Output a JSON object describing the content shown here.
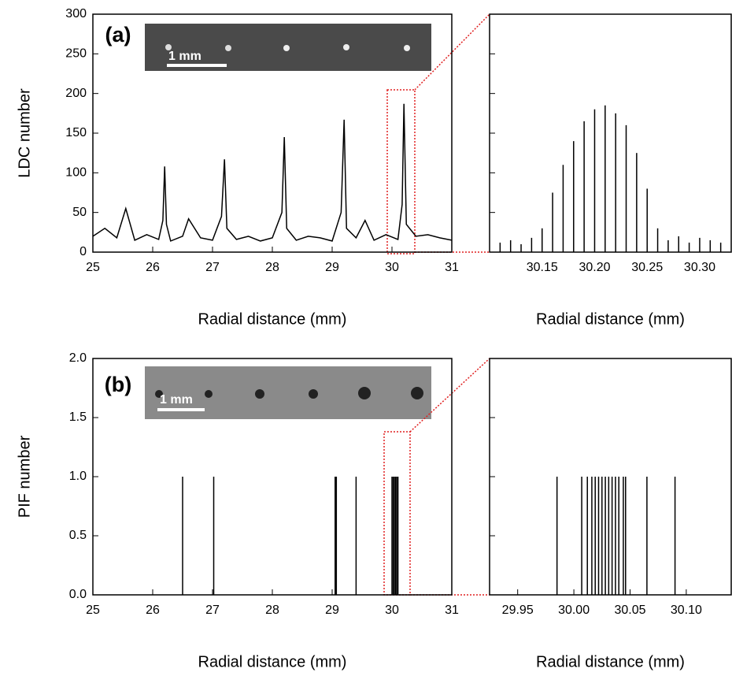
{
  "chart_data": [
    {
      "type": "line",
      "panel_label": "(a)",
      "inset_label": "1 mm",
      "ylabel": "LDC number",
      "xlabel": "Radial distance (mm)",
      "color": "#000000",
      "ytick_labels": true,
      "xlim": [
        25,
        31
      ],
      "ylim": [
        0,
        300
      ],
      "xticks": [
        25,
        26,
        27,
        28,
        29,
        30,
        31
      ],
      "yticks": [
        0,
        50,
        100,
        150,
        200,
        250,
        300
      ],
      "x": [
        25,
        25.2,
        25.4,
        25.55,
        25.7,
        25.9,
        26.1,
        26.17,
        26.2,
        26.23,
        26.3,
        26.5,
        26.6,
        26.8,
        27.0,
        27.15,
        27.2,
        27.24,
        27.4,
        27.6,
        27.8,
        28.0,
        28.16,
        28.2,
        28.24,
        28.4,
        28.6,
        28.8,
        29.0,
        29.15,
        29.2,
        29.24,
        29.4,
        29.55,
        29.7,
        29.9,
        30.1,
        30.17,
        30.2,
        30.24,
        30.4,
        30.6,
        30.8,
        31
      ],
      "values": [
        20,
        30,
        18,
        55,
        15,
        22,
        16,
        40,
        108,
        35,
        14,
        20,
        42,
        18,
        15,
        45,
        117,
        30,
        16,
        20,
        14,
        18,
        50,
        145,
        30,
        15,
        20,
        18,
        14,
        50,
        167,
        30,
        18,
        40,
        15,
        22,
        16,
        60,
        187,
        35,
        20,
        22,
        18,
        15
      ]
    },
    {
      "type": "stem",
      "xlabel": "Radial distance (mm)",
      "color": "#000000",
      "ytick_labels": false,
      "xlim": [
        30.1,
        30.33
      ],
      "ylim": [
        0,
        300
      ],
      "xticks": [
        30.15,
        {
          "value": 30.2,
          "label": "30.20"
        },
        30.25,
        {
          "value": 30.3,
          "label": "30.30"
        }
      ],
      "yticks": [
        0,
        50,
        100,
        150,
        200,
        250,
        300
      ],
      "x": [
        30.11,
        30.12,
        30.13,
        30.14,
        30.15,
        30.16,
        30.17,
        30.18,
        30.19,
        30.2,
        30.21,
        30.22,
        30.23,
        30.24,
        30.25,
        30.26,
        30.27,
        30.28,
        30.29,
        30.3,
        30.31,
        30.32
      ],
      "values": [
        12,
        15,
        10,
        18,
        30,
        75,
        110,
        140,
        165,
        180,
        185,
        175,
        160,
        125,
        80,
        30,
        15,
        20,
        12,
        18,
        15,
        12
      ]
    },
    {
      "type": "stem",
      "panel_label": "(b)",
      "inset_label": "1 mm",
      "ylabel": "PIF number",
      "xlabel": "Radial distance (mm)",
      "color": "#000000",
      "ytick_labels": true,
      "xlim": [
        25,
        31
      ],
      "ylim": [
        0,
        2
      ],
      "xticks": [
        25,
        26,
        27,
        28,
        29,
        30,
        31
      ],
      "yticks": [
        {
          "value": 0,
          "label": "0.0"
        },
        0.5,
        {
          "value": 1,
          "label": "1.0"
        },
        1.5,
        {
          "value": 2,
          "label": "2.0"
        }
      ],
      "x": [
        26.5,
        27.02,
        29.05,
        29.07,
        29.4,
        30.0,
        30.02,
        30.04,
        30.06,
        30.08,
        30.1
      ],
      "values": [
        1,
        1,
        1,
        1,
        1,
        1,
        1,
        1,
        1,
        1,
        1
      ]
    },
    {
      "type": "stem",
      "xlabel": "Radial distance (mm)",
      "color": "#000000",
      "ytick_labels": false,
      "xlim": [
        29.925,
        30.14
      ],
      "ylim": [
        0,
        2
      ],
      "xticks": [
        29.95,
        {
          "value": 30,
          "label": "30.00"
        },
        30.05,
        {
          "value": 30.1,
          "label": "30.10"
        }
      ],
      "yticks": [
        0,
        0.5,
        1,
        1.5,
        2
      ],
      "x": [
        29.985,
        30.007,
        30.012,
        30.016,
        30.019,
        30.022,
        30.025,
        30.028,
        30.031,
        30.034,
        30.037,
        30.04,
        30.044,
        30.046,
        30.065,
        30.09
      ],
      "values": [
        1,
        1,
        1,
        1,
        1,
        1,
        1,
        1,
        1,
        1,
        1,
        1,
        1,
        1,
        1,
        1
      ]
    }
  ]
}
